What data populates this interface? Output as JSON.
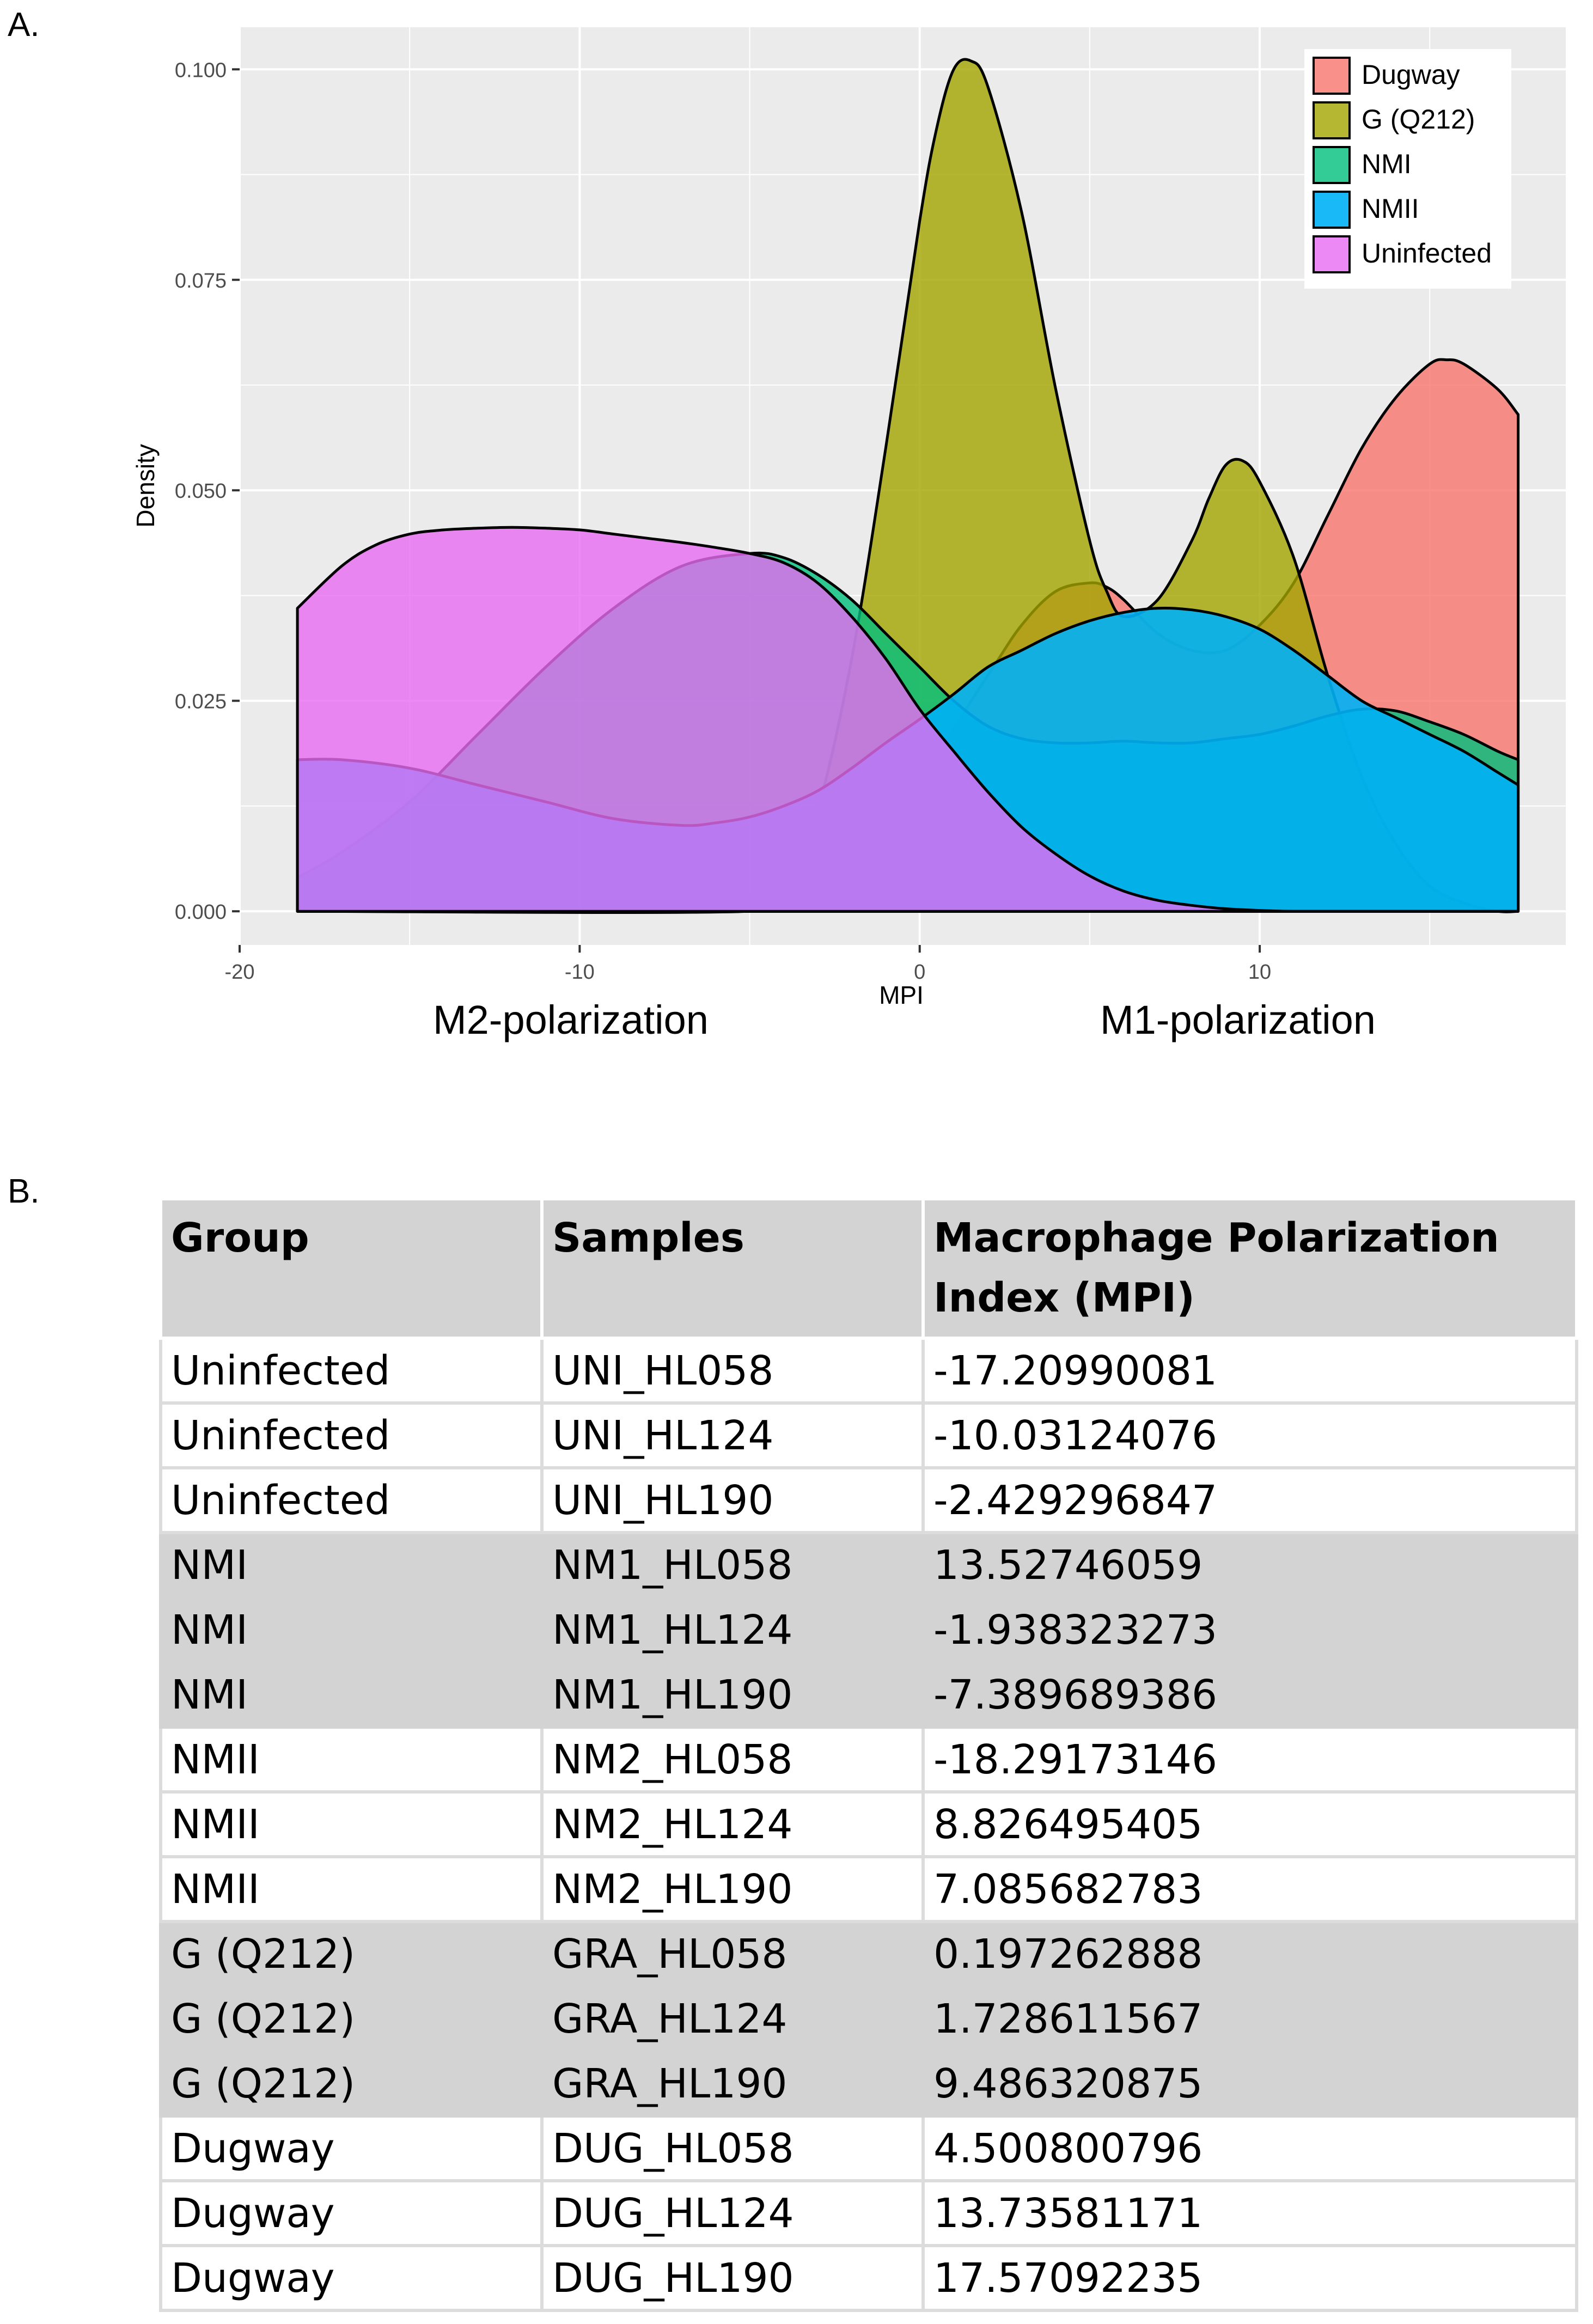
{
  "panel_a_label": "A.",
  "panel_b_label": "B.",
  "chart_data": {
    "type": "area",
    "subtype": "density",
    "title": "",
    "xlabel": "MPI",
    "ylabel": "Density",
    "xlim": [
      -20,
      19
    ],
    "ylim": [
      -0.004,
      0.105
    ],
    "x_ticks": [
      -20,
      -10,
      0,
      10
    ],
    "x_tick_labels": [
      "-20",
      "-10",
      "0",
      "10"
    ],
    "y_ticks": [
      0,
      0.025,
      0.05,
      0.075,
      0.1
    ],
    "y_tick_labels": [
      "0.000",
      "0.025",
      "0.050",
      "0.075",
      "0.100"
    ],
    "legend_position": "top-right",
    "annotations": [
      "M2-polarization",
      "M1-polarization"
    ],
    "series": [
      {
        "name": "Dugway",
        "color": "#f8766d",
        "opacity": 0.8,
        "x": [
          -18.3,
          -16,
          -13,
          -10,
          -8,
          -6,
          -4,
          -2,
          0,
          2,
          3,
          4,
          5,
          5.5,
          6,
          7,
          8,
          9,
          10,
          11,
          12,
          13,
          14,
          15,
          15.5,
          16,
          17,
          17.6
        ],
        "y": [
          0.0,
          0.0,
          0.0,
          0.0,
          0.0,
          0.001,
          0.003,
          0.008,
          0.016,
          0.028,
          0.034,
          0.038,
          0.039,
          0.0385,
          0.037,
          0.033,
          0.031,
          0.031,
          0.034,
          0.039,
          0.047,
          0.055,
          0.061,
          0.065,
          0.0655,
          0.065,
          0.062,
          0.059
        ]
      },
      {
        "name": "G (Q212)",
        "color": "#a3a500",
        "opacity": 0.8,
        "x": [
          -18.3,
          -5,
          -4,
          -3,
          -2,
          -1,
          0,
          0.5,
          1,
          1.5,
          2,
          3,
          4,
          5,
          5.5,
          6,
          7,
          8,
          8.5,
          9,
          9.5,
          10,
          11,
          12,
          13,
          14,
          15,
          16,
          17,
          17.6
        ],
        "y": [
          0.0,
          0.0,
          0.002,
          0.012,
          0.03,
          0.055,
          0.082,
          0.093,
          0.1,
          0.101,
          0.098,
          0.083,
          0.062,
          0.044,
          0.038,
          0.035,
          0.037,
          0.044,
          0.049,
          0.053,
          0.0535,
          0.051,
          0.042,
          0.028,
          0.016,
          0.008,
          0.003,
          0.001,
          0.0,
          0.0
        ]
      },
      {
        "name": "NMI",
        "color": "#00bf7d",
        "opacity": 0.8,
        "x": [
          -18.3,
          -17,
          -15,
          -13,
          -11,
          -9,
          -7,
          -5,
          -4,
          -3,
          -2,
          -1,
          0,
          1,
          2,
          3,
          4,
          5,
          6,
          7,
          8,
          9,
          10,
          11,
          12,
          13,
          14,
          15,
          16,
          17,
          17.6
        ],
        "y": [
          0.004,
          0.007,
          0.013,
          0.021,
          0.029,
          0.036,
          0.041,
          0.0425,
          0.042,
          0.04,
          0.037,
          0.033,
          0.029,
          0.025,
          0.022,
          0.0205,
          0.02,
          0.02,
          0.0202,
          0.02,
          0.02,
          0.0205,
          0.021,
          0.022,
          0.0232,
          0.024,
          0.0238,
          0.0225,
          0.021,
          0.019,
          0.018
        ]
      },
      {
        "name": "NMII",
        "color": "#00b0f6",
        "opacity": 0.9,
        "x": [
          -18.3,
          -17,
          -15,
          -13,
          -11,
          -9,
          -7,
          -6,
          -5,
          -4,
          -3,
          -2,
          -1,
          0,
          1,
          2,
          3,
          4,
          5,
          6,
          7,
          8,
          9,
          10,
          11,
          12,
          13,
          14,
          15,
          16,
          17,
          17.6
        ],
        "y": [
          0.018,
          0.018,
          0.017,
          0.015,
          0.013,
          0.011,
          0.0102,
          0.0105,
          0.0112,
          0.0125,
          0.0143,
          0.017,
          0.02,
          0.0228,
          0.0258,
          0.029,
          0.031,
          0.033,
          0.0345,
          0.0355,
          0.036,
          0.0358,
          0.035,
          0.0335,
          0.031,
          0.028,
          0.025,
          0.023,
          0.021,
          0.019,
          0.0165,
          0.015
        ]
      },
      {
        "name": "Uninfected",
        "color": "#e76bf3",
        "opacity": 0.8,
        "x": [
          -18.3,
          -17,
          -16,
          -15,
          -14,
          -13,
          -12,
          -11,
          -10,
          -9,
          -8,
          -7,
          -6,
          -5,
          -4,
          -3,
          -2,
          -1,
          0,
          1,
          2,
          3,
          4,
          5,
          6,
          7,
          8,
          9,
          10,
          11,
          12,
          13,
          14,
          15,
          16,
          17,
          17.6
        ],
        "y": [
          0.036,
          0.041,
          0.0435,
          0.0448,
          0.0453,
          0.0455,
          0.0456,
          0.0455,
          0.0453,
          0.0448,
          0.0443,
          0.0438,
          0.0432,
          0.0425,
          0.0414,
          0.039,
          0.035,
          0.03,
          0.024,
          0.019,
          0.0142,
          0.01,
          0.0068,
          0.0042,
          0.0024,
          0.0013,
          0.0007,
          0.0003,
          0.0001,
          0.0,
          0.0,
          0.0,
          0.0,
          0.0,
          0.0,
          0.0,
          0.0
        ]
      }
    ]
  },
  "table": {
    "headers": [
      "Group",
      "Samples",
      "Macrophage Polarization Index (MPI)"
    ],
    "rows": [
      [
        "Uninfected",
        "UNI_HL058",
        "-17.20990081"
      ],
      [
        "Uninfected",
        "UNI_HL124",
        "-10.03124076"
      ],
      [
        "Uninfected",
        "UNI_HL190",
        "-2.429296847"
      ],
      [
        "NMI",
        "NM1_HL058",
        "13.52746059"
      ],
      [
        "NMI",
        "NM1_HL124",
        "-1.938323273"
      ],
      [
        "NMI",
        "NM1_HL190",
        "-7.389689386"
      ],
      [
        "NMII",
        "NM2_HL058",
        "-18.29173146"
      ],
      [
        "NMII",
        "NM2_HL124",
        "8.826495405"
      ],
      [
        "NMII",
        "NM2_HL190",
        "7.085682783"
      ],
      [
        "G (Q212)",
        "GRA_HL058",
        "0.197262888"
      ],
      [
        "G (Q212)",
        "GRA_HL124",
        "1.728611567"
      ],
      [
        "G (Q212)",
        "GRA_HL190",
        "9.486320875"
      ],
      [
        "Dugway",
        "DUG_HL058",
        "4.500800796"
      ],
      [
        "Dugway",
        "DUG_HL124",
        "13.73581171"
      ],
      [
        "Dugway",
        "DUG_HL190",
        "17.57092235"
      ]
    ]
  }
}
